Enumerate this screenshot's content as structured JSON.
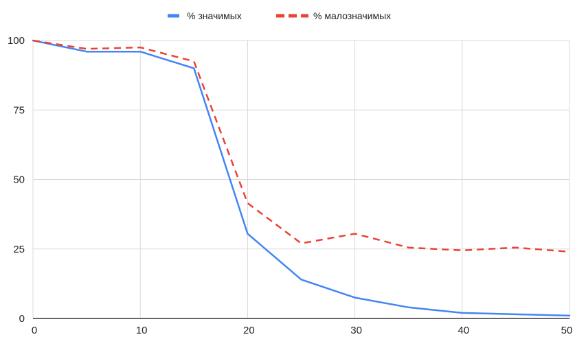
{
  "chart_data": {
    "type": "line",
    "title": "",
    "xlabel": "",
    "ylabel": "",
    "xlim": [
      0,
      50
    ],
    "ylim": [
      0,
      100
    ],
    "x_ticks": [
      0,
      10,
      20,
      30,
      40,
      50
    ],
    "y_ticks": [
      0,
      25,
      50,
      75,
      100
    ],
    "grid": true,
    "legend_position": "top",
    "series": [
      {
        "name": "% значимых",
        "color": "#4285f4",
        "style": "solid",
        "x": [
          0,
          5,
          10,
          15,
          20,
          25,
          30,
          35,
          40,
          45,
          50
        ],
        "y": [
          100,
          96,
          96,
          90,
          30.5,
          14,
          7.5,
          4,
          2,
          1.5,
          1
        ]
      },
      {
        "name": "% малозначимых",
        "color": "#ea4335",
        "style": "dashed",
        "x": [
          0,
          5,
          10,
          15,
          20,
          25,
          30,
          35,
          40,
          45,
          50
        ],
        "y": [
          100,
          97,
          97.5,
          92.5,
          41.5,
          27,
          30.5,
          25.5,
          24.5,
          25.5,
          24
        ]
      }
    ]
  }
}
